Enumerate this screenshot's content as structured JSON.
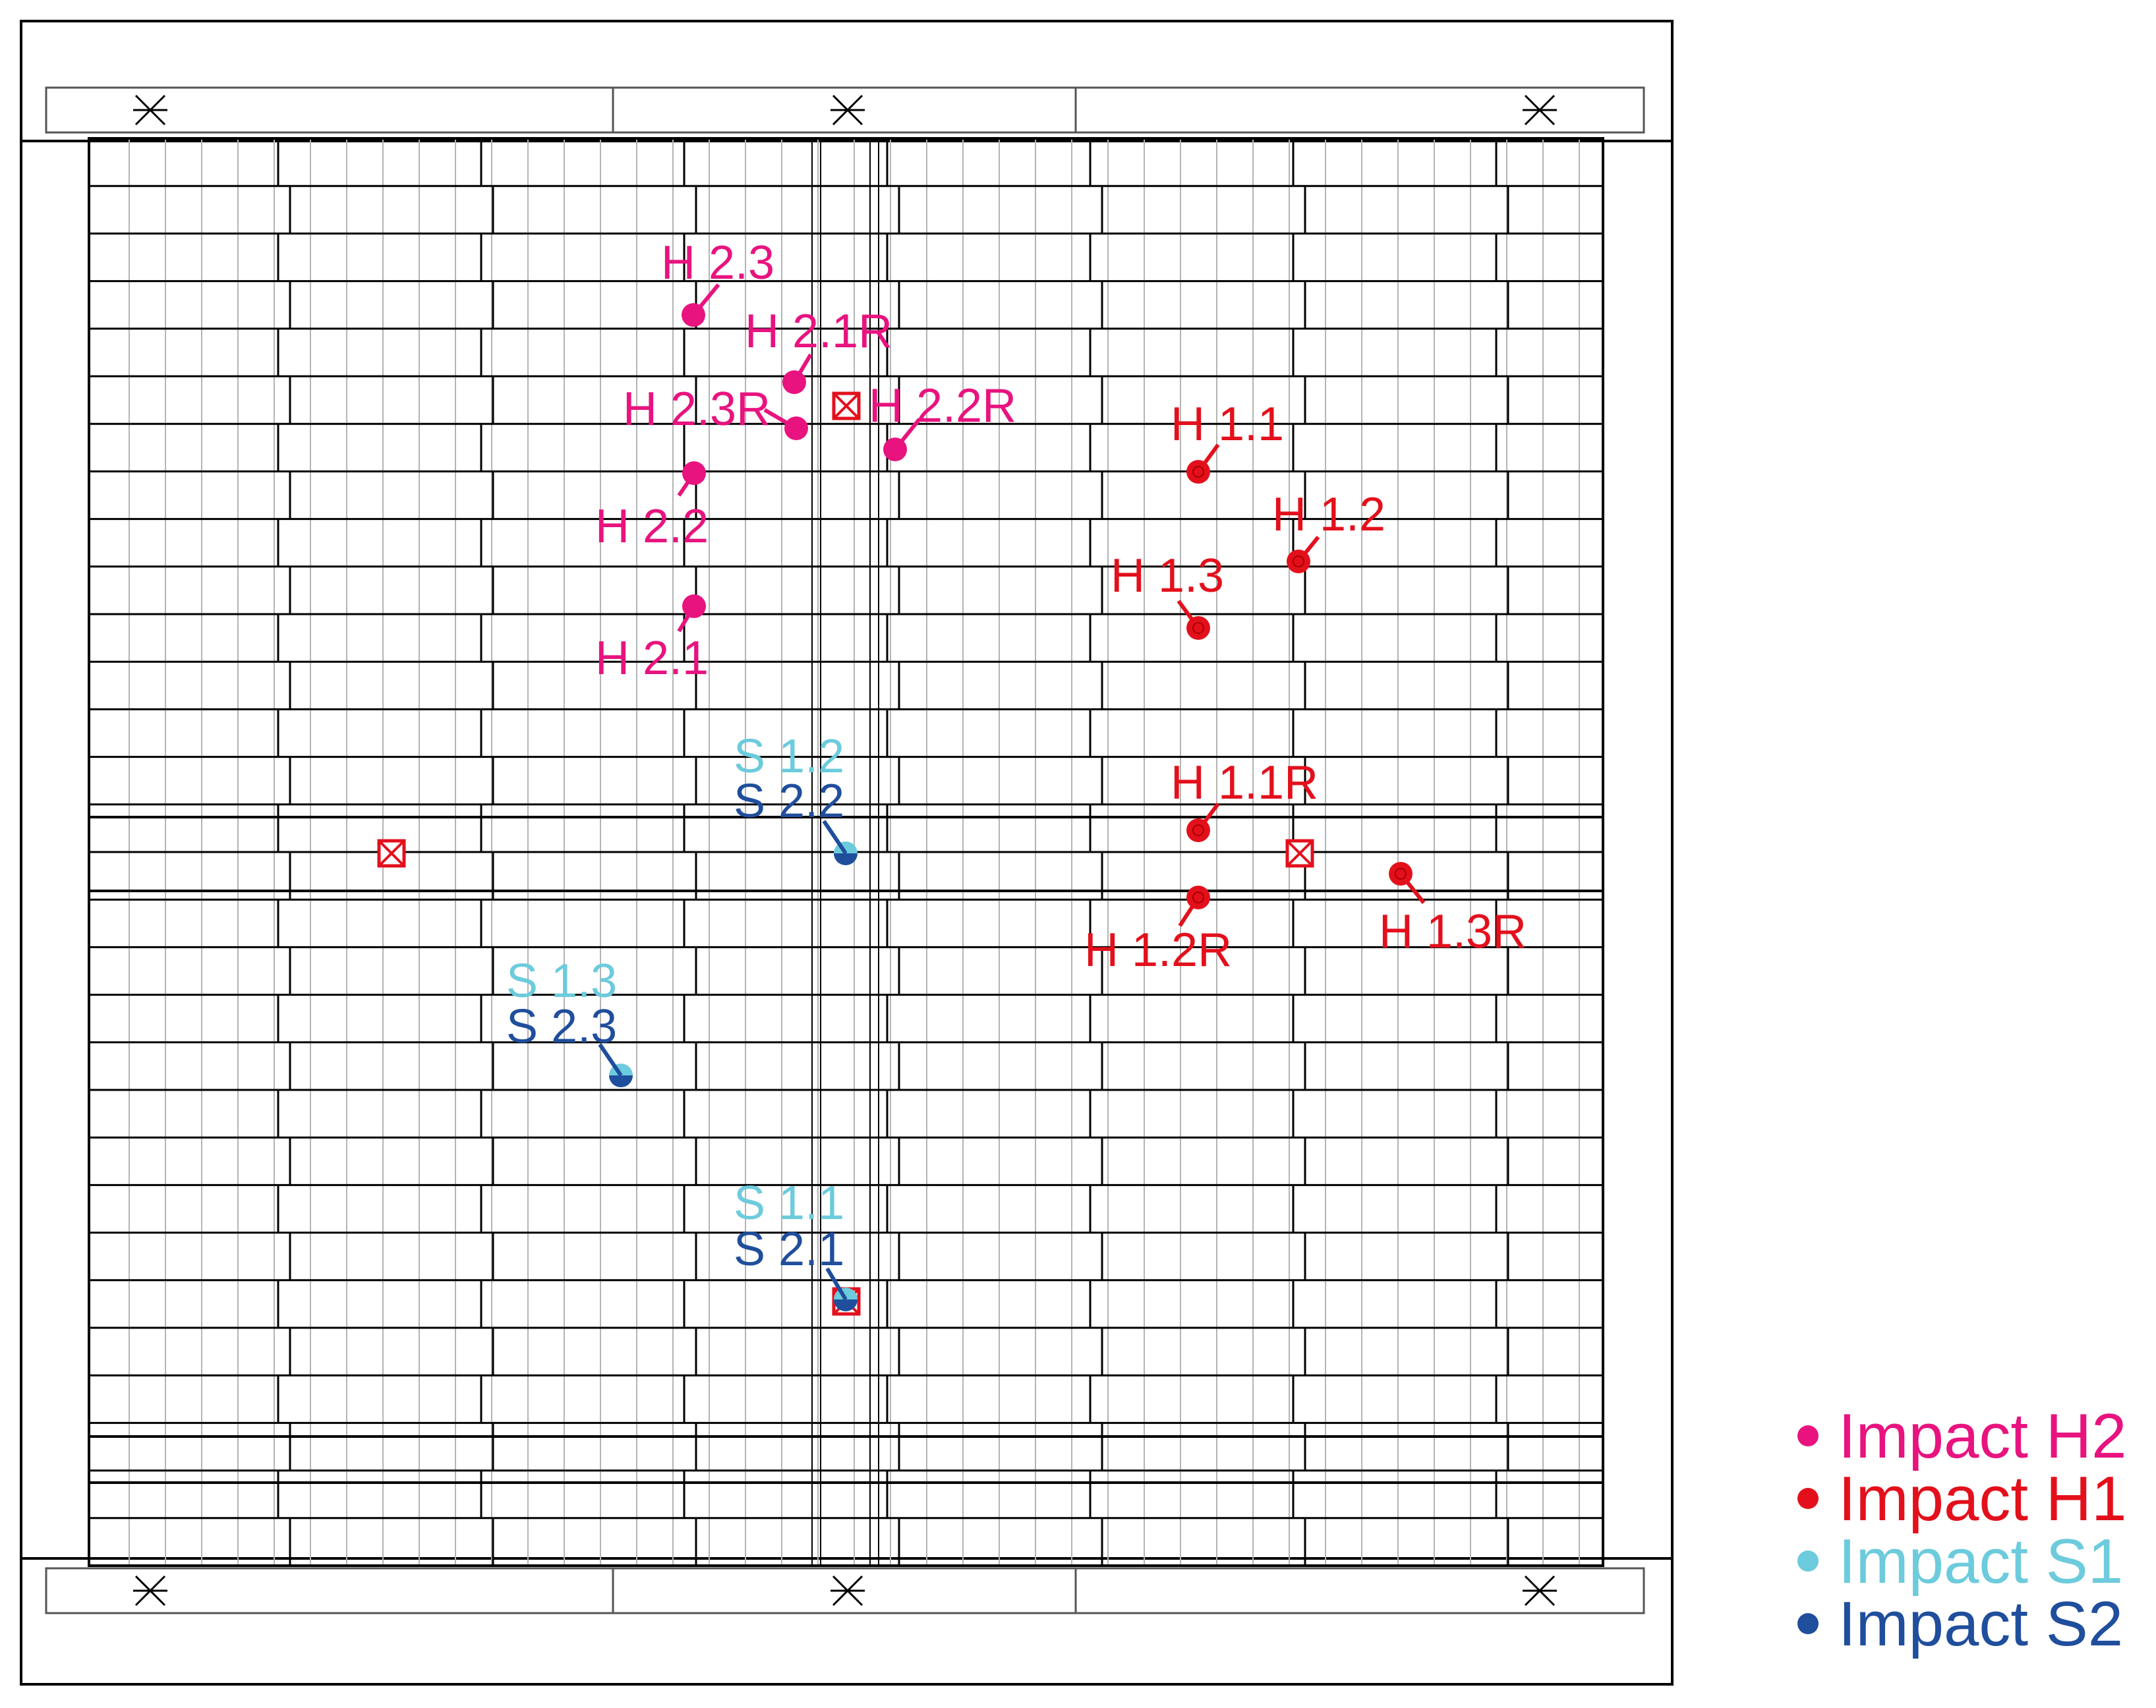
{
  "colors": {
    "h2": "#e8137f",
    "h1": "#e3101c",
    "s1": "#6ccbdc",
    "s2": "#1f4e9c",
    "frame": "#000000",
    "grid": "#b4b4b4",
    "sensor": "#e3101c"
  },
  "legend": [
    {
      "key": "h2",
      "label": "Impact H2"
    },
    {
      "key": "h1",
      "label": "Impact H1"
    },
    {
      "key": "s1",
      "label": "Impact S1"
    },
    {
      "key": "s2",
      "label": "Impact S2"
    }
  ],
  "impacts": {
    "h2": [
      {
        "id": "h2-3",
        "label": "H 2.3"
      },
      {
        "id": "h2-1r",
        "label": "H 2.1R"
      },
      {
        "id": "h2-3r",
        "label": "H 2.3R"
      },
      {
        "id": "h2-2r",
        "label": "H 2.2R"
      },
      {
        "id": "h2-2",
        "label": "H 2.2"
      },
      {
        "id": "h2-1",
        "label": "H 2.1"
      }
    ],
    "h1": [
      {
        "id": "h1-1",
        "label": "H 1.1"
      },
      {
        "id": "h1-2",
        "label": "H 1.2"
      },
      {
        "id": "h1-3",
        "label": "H 1.3"
      },
      {
        "id": "h1-1r",
        "label": "H 1.1R"
      },
      {
        "id": "h1-2r",
        "label": "H 1.2R"
      },
      {
        "id": "h1-3r",
        "label": "H 1.3R"
      }
    ],
    "s1": [
      {
        "id": "s1-2",
        "label": "S 1.2"
      },
      {
        "id": "s1-3",
        "label": "S 1.3"
      },
      {
        "id": "s1-1",
        "label": "S 1.1"
      }
    ],
    "s2": [
      {
        "id": "s2-2",
        "label": "S 2.2"
      },
      {
        "id": "s2-3",
        "label": "S 2.3"
      },
      {
        "id": "s2-1",
        "label": "S 2.1"
      }
    ]
  },
  "sensors": [
    "sensor-top",
    "sensor-left",
    "sensor-right",
    "sensor-bottom"
  ]
}
